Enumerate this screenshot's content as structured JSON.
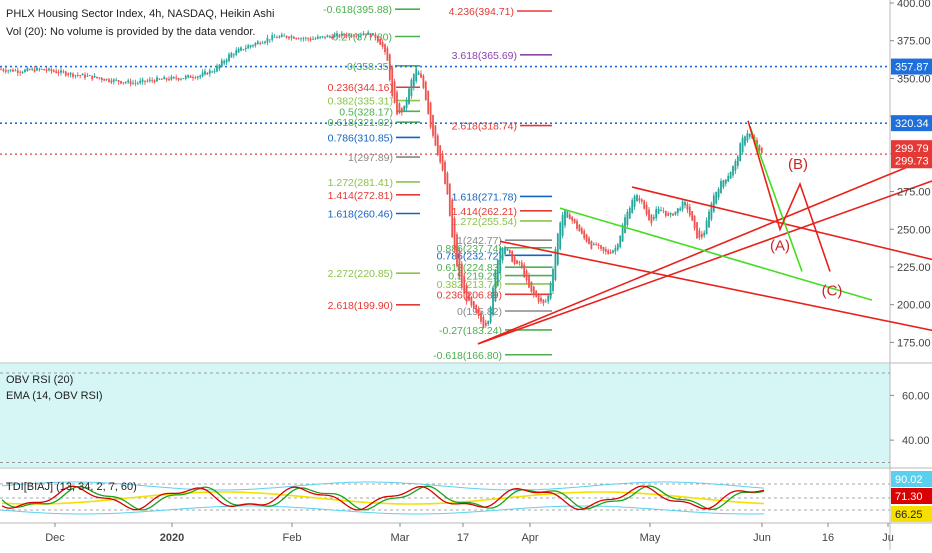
{
  "header": {
    "title": "PHLX Housing Sector Index, 4h, NASDAQ, Heikin Ashi",
    "volume_note": "Vol (20): No volume is provided by the data vendor."
  },
  "colors": {
    "bull": "#26a69a",
    "bear": "#ef5350",
    "fib_red": "#e53935",
    "fib_green": "#4caf50",
    "fib_blue": "#1565c0",
    "fib_purple": "#8e44ad",
    "trend_red": "#e8211a",
    "trend_green": "#44dd22",
    "dotted_blue": "#1e6fd9",
    "obv_bg": "#d6f5f5",
    "tdi_red": "#d80000",
    "tdi_green": "#1aa31a",
    "tdi_yellow": "#f5e000",
    "tdi_cyan": "#5ad0ef"
  },
  "chart_data": {
    "type": "candlestick",
    "title": "PHLX Housing Sector Index, 4h, NASDAQ, Heikin Ashi",
    "y_axis": {
      "ticks": [
        175,
        200,
        225,
        250,
        275,
        300,
        325,
        350,
        375,
        400
      ],
      "tick_labels": [
        "175.00",
        "200.00",
        "225.00",
        "250.00",
        "275.00",
        "300.00",
        "",
        "350.00",
        "375.00",
        "400.00"
      ],
      "ylim": [
        162,
        402
      ]
    },
    "x_axis": {
      "tick_labels": [
        "Dec",
        "2020",
        "Feb",
        "Mar",
        "17",
        "Apr",
        "May",
        "Jun",
        "16",
        "Ju"
      ]
    },
    "price_badges": [
      {
        "value": "357.87",
        "color": "#1e6fd9"
      },
      {
        "value": "320.34",
        "color": "#1e6fd9"
      },
      {
        "value": "299.79",
        "color": "#e53935"
      },
      {
        "value": "299.73",
        "color": "#e53935"
      }
    ],
    "price_path": [
      [
        0,
        356
      ],
      [
        20,
        355
      ],
      [
        40,
        356
      ],
      [
        60,
        354
      ],
      [
        80,
        352
      ],
      [
        100,
        350
      ],
      [
        120,
        348
      ],
      [
        135,
        347
      ],
      [
        155,
        349
      ],
      [
        175,
        350
      ],
      [
        200,
        352
      ],
      [
        215,
        356
      ],
      [
        230,
        366
      ],
      [
        250,
        372
      ],
      [
        270,
        377
      ],
      [
        290,
        378
      ],
      [
        310,
        376
      ],
      [
        330,
        378
      ],
      [
        350,
        379
      ],
      [
        365,
        380
      ],
      [
        375,
        378
      ],
      [
        382,
        372
      ],
      [
        388,
        360
      ],
      [
        392,
        338
      ],
      [
        398,
        325
      ],
      [
        404,
        330
      ],
      [
        408,
        340
      ],
      [
        412,
        350
      ],
      [
        416,
        356
      ],
      [
        420,
        352
      ],
      [
        425,
        340
      ],
      [
        430,
        320
      ],
      [
        436,
        305
      ],
      [
        442,
        290
      ],
      [
        448,
        270
      ],
      [
        452,
        245
      ],
      [
        456,
        230
      ],
      [
        460,
        215
      ],
      [
        465,
        205
      ],
      [
        470,
        200
      ],
      [
        475,
        195
      ],
      [
        480,
        190
      ],
      [
        484,
        185
      ],
      [
        488,
        190
      ],
      [
        492,
        205
      ],
      [
        496,
        225
      ],
      [
        500,
        238
      ],
      [
        504,
        240
      ],
      [
        508,
        235
      ],
      [
        512,
        230
      ],
      [
        516,
        225
      ],
      [
        520,
        228
      ],
      [
        524,
        220
      ],
      [
        528,
        212
      ],
      [
        532,
        207
      ],
      [
        536,
        205
      ],
      [
        540,
        202
      ],
      [
        544,
        200
      ],
      [
        548,
        205
      ],
      [
        552,
        220
      ],
      [
        556,
        240
      ],
      [
        560,
        255
      ],
      [
        564,
        262
      ],
      [
        568,
        260
      ],
      [
        572,
        256
      ],
      [
        576,
        252
      ],
      [
        580,
        248
      ],
      [
        584,
        244
      ],
      [
        588,
        242
      ],
      [
        592,
        238
      ],
      [
        596,
        240
      ],
      [
        600,
        236
      ],
      [
        604,
        235
      ],
      [
        608,
        234
      ],
      [
        612,
        236
      ],
      [
        616,
        238
      ],
      [
        620,
        246
      ],
      [
        624,
        256
      ],
      [
        628,
        262
      ],
      [
        632,
        270
      ],
      [
        636,
        272
      ],
      [
        640,
        270
      ],
      [
        644,
        264
      ],
      [
        648,
        258
      ],
      [
        652,
        255
      ],
      [
        656,
        262
      ],
      [
        660,
        263
      ],
      [
        664,
        262
      ],
      [
        668,
        258
      ],
      [
        672,
        260
      ],
      [
        676,
        262
      ],
      [
        680,
        265
      ],
      [
        684,
        268
      ],
      [
        688,
        263
      ],
      [
        692,
        255
      ],
      [
        696,
        246
      ],
      [
        700,
        243
      ],
      [
        704,
        248
      ],
      [
        708,
        258
      ],
      [
        712,
        270
      ],
      [
        716,
        275
      ],
      [
        720,
        280
      ],
      [
        724,
        283
      ],
      [
        728,
        286
      ],
      [
        732,
        290
      ],
      [
        736,
        295
      ],
      [
        740,
        305
      ],
      [
        744,
        312
      ],
      [
        748,
        315
      ],
      [
        752,
        310
      ],
      [
        756,
        304
      ],
      [
        760,
        300
      ],
      [
        764,
        299.8
      ]
    ],
    "fib_levels": [
      {
        "label": "-0.618(395.88)",
        "value": 395.88,
        "color": "#4caf50",
        "x_text": 392,
        "x1": 395,
        "x2": 420
      },
      {
        "label": "4.236(394.71)",
        "value": 394.71,
        "color": "#e53935",
        "x_text": 514,
        "x1": 517,
        "x2": 552
      },
      {
        "label": "-0.27(377.80)",
        "value": 377.8,
        "color": "#4caf50",
        "x_text": 392,
        "x1": 395,
        "x2": 420
      },
      {
        "label": "3.618(365.69)",
        "value": 365.69,
        "color": "#8e44ad",
        "x_text": 517,
        "x1": 520,
        "x2": 552
      },
      {
        "label": "0(358.35)",
        "value": 358.35,
        "color": "#4caf50",
        "x_text": 392,
        "x1": 395,
        "x2": 420
      },
      {
        "label": "0.236(344.16)",
        "value": 344.16,
        "color": "#e53935",
        "x_text": 393,
        "x1": 396,
        "x2": 420
      },
      {
        "label": "0.382(335.31)",
        "value": 335.31,
        "color": "#8bc34a",
        "x_text": 393,
        "x1": 396,
        "x2": 420
      },
      {
        "label": "0.5(328.17)",
        "value": 328.17,
        "color": "#4caf50",
        "x_text": 393,
        "x1": 396,
        "x2": 420
      },
      {
        "label": "0.618(321.02)",
        "value": 321.02,
        "color": "#4caf50",
        "x_text": 393,
        "x1": 396,
        "x2": 420
      },
      {
        "label": "2.618(318.74)",
        "value": 318.74,
        "color": "#e53935",
        "x_text": 517,
        "x1": 520,
        "x2": 552
      },
      {
        "label": "0.786(310.85)",
        "value": 310.85,
        "color": "#1565c0",
        "x_text": 393,
        "x1": 396,
        "x2": 420
      },
      {
        "label": "1(297.89)",
        "value": 297.89,
        "color": "#888888",
        "x_text": 393,
        "x1": 396,
        "x2": 420
      },
      {
        "label": "1.272(281.41)",
        "value": 281.41,
        "color": "#8bc34a",
        "x_text": 393,
        "x1": 396,
        "x2": 420
      },
      {
        "label": "1.414(272.81)",
        "value": 272.81,
        "color": "#e53935",
        "x_text": 393,
        "x1": 396,
        "x2": 420
      },
      {
        "label": "1.618(271.78)",
        "value": 271.78,
        "color": "#1565c0",
        "x_text": 517,
        "x1": 520,
        "x2": 552
      },
      {
        "label": "1.414(262.21)",
        "value": 262.21,
        "color": "#e53935",
        "x_text": 517,
        "x1": 520,
        "x2": 552
      },
      {
        "label": "1.618(260.46)",
        "value": 260.46,
        "color": "#1565c0",
        "x_text": 393,
        "x1": 396,
        "x2": 420
      },
      {
        "label": "1.272(255.54)",
        "value": 255.54,
        "color": "#8bc34a",
        "x_text": 517,
        "x1": 520,
        "x2": 552
      },
      {
        "label": "1(242.77)",
        "value": 242.77,
        "color": "#888888",
        "x_text": 502,
        "x1": 505,
        "x2": 552
      },
      {
        "label": "0.886(237.74)",
        "value": 237.74,
        "color": "#4caf50",
        "x_text": 502,
        "x1": 505,
        "x2": 552
      },
      {
        "label": "0.786(232.72)",
        "value": 232.72,
        "color": "#1565c0",
        "x_text": 502,
        "x1": 505,
        "x2": 552
      },
      {
        "label": "0.618(224.83)",
        "value": 224.83,
        "color": "#4caf50",
        "x_text": 502,
        "x1": 505,
        "x2": 552
      },
      {
        "label": "2.272(220.85)",
        "value": 220.85,
        "color": "#8bc34a",
        "x_text": 393,
        "x1": 396,
        "x2": 420
      },
      {
        "label": "0.5(219.29)",
        "value": 219.29,
        "color": "#4caf50",
        "x_text": 502,
        "x1": 505,
        "x2": 552
      },
      {
        "label": "0.382(213.74)",
        "value": 213.74,
        "color": "#8bc34a",
        "x_text": 502,
        "x1": 505,
        "x2": 552
      },
      {
        "label": "0.236(206.89)",
        "value": 206.89,
        "color": "#e53935",
        "x_text": 502,
        "x1": 505,
        "x2": 552
      },
      {
        "label": "2.618(199.90)",
        "value": 199.9,
        "color": "#e53935",
        "x_text": 393,
        "x1": 396,
        "x2": 420
      },
      {
        "label": "0(195.82)",
        "value": 195.82,
        "color": "#888888",
        "x_text": 502,
        "x1": 505,
        "x2": 552
      },
      {
        "label": "-0.27(183.24)",
        "value": 183.24,
        "color": "#4caf50",
        "x_text": 502,
        "x1": 505,
        "x2": 552
      },
      {
        "label": "-0.618(166.80)",
        "value": 166.8,
        "color": "#4caf50",
        "x_text": 502,
        "x1": 505,
        "x2": 552
      }
    ],
    "dotted_levels": [
      {
        "value": 357.87,
        "color": "#1e6fd9"
      },
      {
        "value": 320.34,
        "color": "#1e6fd9"
      },
      {
        "value": 299.79,
        "color": "#e57373"
      }
    ],
    "trendlines": [
      {
        "color": "#e8211a",
        "points": [
          [
            478,
            174
          ],
          [
            932,
            298
          ]
        ]
      },
      {
        "color": "#e8211a",
        "points": [
          [
            478,
            174
          ],
          [
            932,
            282
          ]
        ]
      },
      {
        "color": "#e8211a",
        "points": [
          [
            500,
            242
          ],
          [
            932,
            183
          ]
        ]
      },
      {
        "color": "#e8211a",
        "points": [
          [
            632,
            278
          ],
          [
            932,
            230
          ]
        ]
      },
      {
        "color": "#44dd22",
        "points": [
          [
            560,
            264
          ],
          [
            872,
            203
          ]
        ]
      },
      {
        "color": "#44dd22",
        "points": [
          [
            750,
            318
          ],
          [
            802,
            222
          ]
        ]
      },
      {
        "color": "#e8211a",
        "points": [
          [
            748,
            322
          ],
          [
            780,
            250
          ],
          [
            800,
            280
          ],
          [
            830,
            222
          ]
        ]
      }
    ],
    "wave_labels": [
      {
        "text": "(B)",
        "x": 798,
        "value": 290,
        "color": "#c62828"
      },
      {
        "text": "(A)",
        "x": 780,
        "value": 236,
        "color": "#c62828"
      },
      {
        "text": "(C)",
        "x": 832,
        "value": 206,
        "color": "#c62828"
      }
    ],
    "obv_panel": {
      "labels": [
        "OBV RSI (20)",
        "EMA (14, OBV RSI)"
      ],
      "tick_labels": [
        "60.00",
        "40.00"
      ],
      "ticks": [
        60,
        40
      ],
      "ylim": [
        28,
        74
      ],
      "band": [
        70,
        30
      ]
    },
    "tdi_panel": {
      "label": "TDI[BIAJ] (13, 34, 2, 7, 60)",
      "badges": [
        {
          "value": "90.02",
          "color": "#5ad0ef"
        },
        {
          "value": "71.30",
          "color": "#d80000"
        },
        {
          "value": "66.25",
          "color": "#f5e000"
        }
      ]
    }
  }
}
